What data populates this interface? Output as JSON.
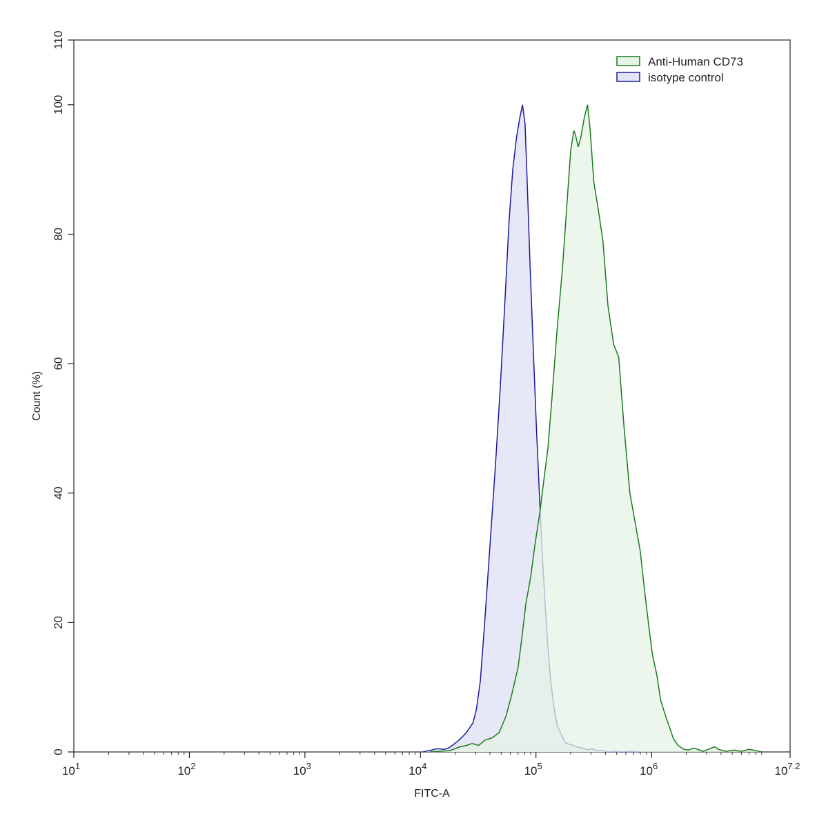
{
  "chart_data": {
    "type": "area",
    "xlabel": "FITC-A",
    "ylabel": "Count (%)",
    "x_scale": "log10",
    "xlim": [
      10,
      15848931.92
    ],
    "ylim": [
      0,
      110
    ],
    "x_ticks": [
      {
        "value": 10,
        "base": "10",
        "exp": "1"
      },
      {
        "value": 100,
        "base": "10",
        "exp": "2"
      },
      {
        "value": 1000,
        "base": "10",
        "exp": "3"
      },
      {
        "value": 10000,
        "base": "10",
        "exp": "4"
      },
      {
        "value": 100000,
        "base": "10",
        "exp": "5"
      },
      {
        "value": 1000000,
        "base": "10",
        "exp": "6"
      },
      {
        "value": 15848931.92,
        "base": "10",
        "exp": "7.2"
      }
    ],
    "y_ticks": [
      "0",
      "20",
      "40",
      "60",
      "80",
      "100",
      "110"
    ],
    "legend_position": "top-right",
    "grid": false,
    "series": [
      {
        "name": "Anti-Human CD73",
        "stroke": "#1a7a1a",
        "fill": "#e6f3e6",
        "points": [
          [
            12000,
            0
          ],
          [
            18000,
            0.2
          ],
          [
            22000,
            0.8
          ],
          [
            25000,
            1.0
          ],
          [
            28000,
            1.3
          ],
          [
            32000,
            1.0
          ],
          [
            36000,
            1.8
          ],
          [
            42000,
            2.2
          ],
          [
            48000,
            3.0
          ],
          [
            55000,
            5.5
          ],
          [
            62000,
            9
          ],
          [
            70000,
            13
          ],
          [
            76000,
            18
          ],
          [
            82000,
            23
          ],
          [
            90000,
            27
          ],
          [
            98000,
            32
          ],
          [
            108000,
            37
          ],
          [
            117000,
            42
          ],
          [
            127000,
            47
          ],
          [
            138000,
            55
          ],
          [
            152000,
            65
          ],
          [
            170000,
            75
          ],
          [
            186000,
            85
          ],
          [
            200000,
            93
          ],
          [
            213000,
            96
          ],
          [
            222000,
            95
          ],
          [
            232000,
            93.5
          ],
          [
            245000,
            95
          ],
          [
            262000,
            98
          ],
          [
            280000,
            100
          ],
          [
            295000,
            96
          ],
          [
            317000,
            88
          ],
          [
            345000,
            84
          ],
          [
            380000,
            79
          ],
          [
            420000,
            69
          ],
          [
            470000,
            63
          ],
          [
            520000,
            61
          ],
          [
            580000,
            50
          ],
          [
            650000,
            40
          ],
          [
            730000,
            35
          ],
          [
            800000,
            31
          ],
          [
            870000,
            25
          ],
          [
            940000,
            20
          ],
          [
            1020000,
            15
          ],
          [
            1110000,
            12
          ],
          [
            1200000,
            8
          ],
          [
            1300000,
            6
          ],
          [
            1420000,
            4
          ],
          [
            1550000,
            2
          ],
          [
            1700000,
            1
          ],
          [
            1900000,
            0.4
          ],
          [
            2100000,
            0.3
          ],
          [
            2300000,
            0.6
          ],
          [
            2500000,
            0.4
          ],
          [
            2800000,
            0.1
          ],
          [
            3200000,
            0.5
          ],
          [
            3500000,
            0.8
          ],
          [
            3800000,
            0.4
          ],
          [
            4400000,
            0.1
          ],
          [
            5200000,
            0.3
          ],
          [
            6000000,
            0.1
          ],
          [
            7000000,
            0.4
          ],
          [
            7600000,
            0.3
          ],
          [
            9000000,
            0
          ]
        ]
      },
      {
        "name": "isotype control",
        "stroke": "#1a1a99",
        "fill": "#e3e5f7",
        "points": [
          [
            10500,
            0
          ],
          [
            12500,
            0.3
          ],
          [
            14000,
            0.5
          ],
          [
            16000,
            0.4
          ],
          [
            17500,
            0.6
          ],
          [
            19500,
            1.2
          ],
          [
            21500,
            1.8
          ],
          [
            23000,
            2.3
          ],
          [
            25000,
            3.0
          ],
          [
            28500,
            4.5
          ],
          [
            30500,
            6.5
          ],
          [
            33000,
            11
          ],
          [
            36000,
            20
          ],
          [
            40000,
            32
          ],
          [
            44500,
            44
          ],
          [
            49000,
            56
          ],
          [
            54000,
            70
          ],
          [
            58500,
            82
          ],
          [
            63000,
            90
          ],
          [
            68000,
            95
          ],
          [
            72500,
            98
          ],
          [
            76500,
            100
          ],
          [
            80500,
            97
          ],
          [
            84000,
            88
          ],
          [
            89000,
            75
          ],
          [
            95000,
            62
          ],
          [
            101000,
            50
          ],
          [
            107000,
            40
          ],
          [
            113000,
            31
          ],
          [
            119000,
            24
          ],
          [
            126000,
            17
          ],
          [
            134000,
            11
          ],
          [
            143000,
            7
          ],
          [
            153000,
            4
          ],
          [
            165000,
            2.8
          ],
          [
            178000,
            1.5
          ],
          [
            192000,
            1.2
          ],
          [
            212000,
            1.0
          ],
          [
            232000,
            0.7
          ],
          [
            255000,
            0.6
          ],
          [
            280000,
            0.3
          ],
          [
            305000,
            0.5
          ],
          [
            335000,
            0.2
          ],
          [
            380000,
            0.2
          ],
          [
            430000,
            0
          ],
          [
            480000,
            0.1
          ],
          [
            560000,
            0
          ],
          [
            650000,
            0.1
          ],
          [
            800000,
            0
          ]
        ]
      }
    ]
  }
}
